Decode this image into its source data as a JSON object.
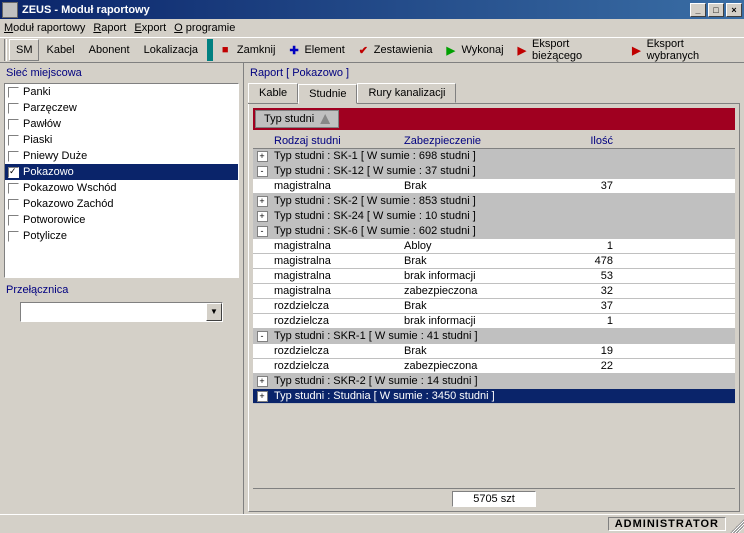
{
  "window": {
    "title": "ZEUS - Moduł raportowy"
  },
  "menu": {
    "items": [
      "Moduł raportowy",
      "Raport",
      "Export",
      "O programie"
    ]
  },
  "toolbar": {
    "nav": [
      "SM",
      "Kabel",
      "Abonent",
      "Lokalizacja"
    ],
    "actions": [
      {
        "label": "Zamknij",
        "icon": "close",
        "color": "#c00000"
      },
      {
        "label": "Element",
        "icon": "plus",
        "color": "#0000c0"
      },
      {
        "label": "Zestawienia",
        "icon": "check",
        "color": "#c00000"
      },
      {
        "label": "Wykonaj",
        "icon": "play",
        "color": "#00a000"
      },
      {
        "label": "Eksport bieżącego",
        "icon": "export",
        "color": "#c00000"
      },
      {
        "label": "Eksport wybranych",
        "icon": "export",
        "color": "#c00000"
      }
    ]
  },
  "left": {
    "network_label": "Sieć miejscowa",
    "items": [
      {
        "label": "Panki",
        "checked": false,
        "selected": false
      },
      {
        "label": "Parzęczew",
        "checked": false,
        "selected": false
      },
      {
        "label": "Pawłów",
        "checked": false,
        "selected": false
      },
      {
        "label": "Piaski",
        "checked": false,
        "selected": false
      },
      {
        "label": "Pniewy Duże",
        "checked": false,
        "selected": false
      },
      {
        "label": "Pokazowo",
        "checked": true,
        "selected": true
      },
      {
        "label": "Pokazowo Wschód",
        "checked": false,
        "selected": false
      },
      {
        "label": "Pokazowo Zachód",
        "checked": false,
        "selected": false
      },
      {
        "label": "Potworowice",
        "checked": false,
        "selected": false
      },
      {
        "label": "Potylicze",
        "checked": false,
        "selected": false
      }
    ],
    "switch_label": "Przełącznica",
    "combo_value": ""
  },
  "right": {
    "report_prefix": "Raport",
    "report_name": "[ Pokazowo ]",
    "tabs": [
      {
        "label": "Kable",
        "active": false
      },
      {
        "label": "Studnie",
        "active": true
      },
      {
        "label": "Rury kanalizacji",
        "active": false
      }
    ],
    "group_header": "Typ studni",
    "columns": [
      "Rodzaj studni",
      "Zabezpieczenie",
      "Ilość"
    ],
    "rows": [
      {
        "type": "group",
        "exp": "+",
        "label": "Typ studni : SK-1 [ W sumie : 698 studni ]"
      },
      {
        "type": "group",
        "exp": "-",
        "label": "Typ studni : SK-12 [ W sumie : 37 studni ]"
      },
      {
        "type": "data",
        "c1": "magistralna",
        "c2": "Brak",
        "c3": "37"
      },
      {
        "type": "group",
        "exp": "+",
        "label": "Typ studni : SK-2 [ W sumie : 853 studni ]"
      },
      {
        "type": "group",
        "exp": "+",
        "label": "Typ studni : SK-24 [ W sumie : 10 studni ]"
      },
      {
        "type": "group",
        "exp": "-",
        "label": "Typ studni : SK-6 [ W sumie : 602 studni ]"
      },
      {
        "type": "data",
        "c1": "magistralna",
        "c2": "Abloy",
        "c3": "1"
      },
      {
        "type": "data",
        "c1": "magistralna",
        "c2": "Brak",
        "c3": "478"
      },
      {
        "type": "data",
        "c1": "magistralna",
        "c2": "brak informacji",
        "c3": "53"
      },
      {
        "type": "data",
        "c1": "magistralna",
        "c2": "zabezpieczona",
        "c3": "32"
      },
      {
        "type": "data",
        "c1": "rozdzielcza",
        "c2": "Brak",
        "c3": "37"
      },
      {
        "type": "data",
        "c1": "rozdzielcza",
        "c2": "brak informacji",
        "c3": "1"
      },
      {
        "type": "group",
        "exp": "-",
        "label": "Typ studni : SKR-1 [ W sumie : 41 studni ]"
      },
      {
        "type": "data",
        "c1": "rozdzielcza",
        "c2": "Brak",
        "c3": "19"
      },
      {
        "type": "data",
        "c1": "rozdzielcza",
        "c2": "zabezpieczona",
        "c3": "22"
      },
      {
        "type": "group",
        "exp": "+",
        "label": "Typ studni : SKR-2 [ W sumie : 14 studni ]"
      },
      {
        "type": "group",
        "exp": "+",
        "label": "Typ studni : Studnia [ W sumie : 3450 studni ]",
        "selected": true
      }
    ],
    "footer_total": "5705 szt"
  },
  "status": {
    "user": "ADMINISTRATOR"
  },
  "colors": {
    "titlebar_start": "#0a246a",
    "titlebar_end": "#3a6ea5",
    "panel_accent": "#000080",
    "group_header_bg": "#a00020",
    "selection_bg": "#0a246a",
    "face": "#d4d0c8"
  }
}
